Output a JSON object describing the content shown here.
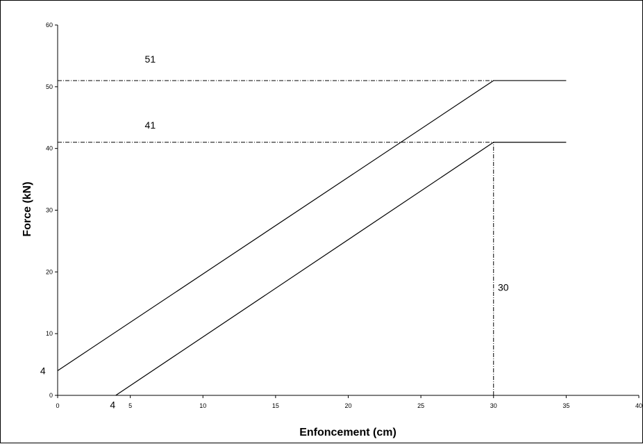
{
  "chart_data": {
    "type": "line",
    "title": "",
    "xlabel": "Enfoncement (cm)",
    "ylabel": "Force (kN)",
    "xlim": [
      0,
      40
    ],
    "ylim": [
      0,
      60
    ],
    "x_ticks": [
      0,
      5,
      10,
      15,
      20,
      25,
      30,
      35,
      40
    ],
    "y_ticks": [
      0,
      10,
      20,
      30,
      40,
      50,
      60
    ],
    "grid": false,
    "legend": "none",
    "series": [
      {
        "x": [
          0,
          30,
          35
        ],
        "y": [
          4,
          51,
          51
        ]
      },
      {
        "x": [
          4,
          30,
          35
        ],
        "y": [
          0,
          41,
          41
        ]
      }
    ],
    "reference_lines": [
      {
        "orientation": "horizontal",
        "y": 51,
        "from_x": 0,
        "to_x": 30
      },
      {
        "orientation": "horizontal",
        "y": 41,
        "from_x": 0,
        "to_x": 30
      },
      {
        "orientation": "vertical",
        "x": 30,
        "from_y": 0,
        "to_y": 41
      }
    ],
    "annotations": [
      {
        "text": "51",
        "x": 6,
        "y": 54.5
      },
      {
        "text": "41",
        "x": 6,
        "y": 43.8
      },
      {
        "text": "30",
        "x": 30.3,
        "y": 17.5
      },
      {
        "text": "4",
        "x": -1.2,
        "y": 4
      },
      {
        "text": "4",
        "x": 3.6,
        "y": -1.5
      }
    ],
    "colors": {
      "line": "#000000",
      "axis": "#000000",
      "background": "#ffffff"
    }
  }
}
